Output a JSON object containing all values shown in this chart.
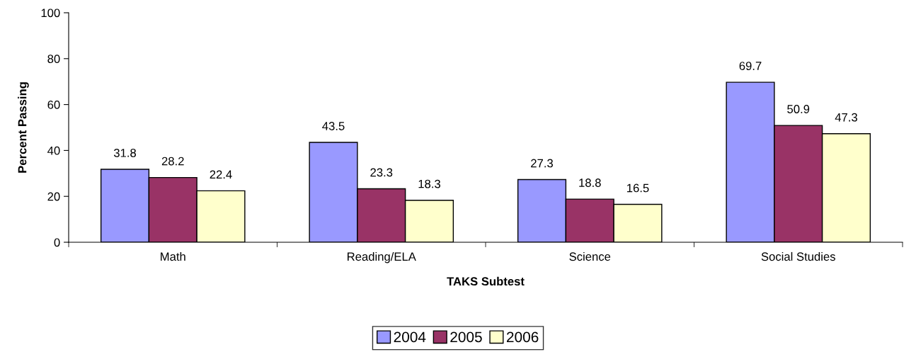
{
  "chart_data": {
    "type": "bar",
    "xlabel": "TAKS Subtest",
    "ylabel": "Percent Passing",
    "categories": [
      "Math",
      "Reading/ELA",
      "Science",
      "Social Studies"
    ],
    "series": [
      {
        "name": "2004",
        "color": "#9999ff",
        "values": [
          31.8,
          43.5,
          27.3,
          69.7
        ]
      },
      {
        "name": "2005",
        "color": "#993366",
        "values": [
          28.2,
          23.3,
          18.8,
          50.9
        ]
      },
      {
        "name": "2006",
        "color": "#ffffcc",
        "values": [
          22.4,
          18.3,
          16.5,
          47.3
        ]
      }
    ],
    "ylim": [
      0,
      100
    ],
    "yticks": [
      0,
      20,
      40,
      60,
      80,
      100
    ],
    "data_labels": true,
    "grid": false,
    "legend": "bottom"
  }
}
